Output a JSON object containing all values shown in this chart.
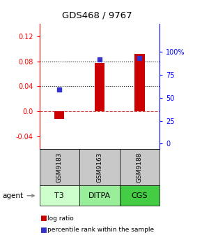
{
  "title": "GDS468 / 9767",
  "categories": [
    "T3",
    "DITPA",
    "CGS"
  ],
  "gsm_labels": [
    "GSM9183",
    "GSM9163",
    "GSM9188"
  ],
  "log_ratios": [
    -0.012,
    0.077,
    0.092
  ],
  "percentile_ranks": [
    0.035,
    0.083,
    0.085
  ],
  "ylim_left": [
    -0.06,
    0.14
  ],
  "ylim_right": [
    -6.25,
    131.25
  ],
  "yticks_left": [
    -0.04,
    0.0,
    0.04,
    0.08,
    0.12
  ],
  "yticks_right": [
    0,
    25,
    50,
    75,
    100
  ],
  "ytick_labels_right": [
    "0",
    "25",
    "50",
    "75",
    "100%"
  ],
  "dotted_lines": [
    0.04,
    0.08
  ],
  "dashed_line": 0.0,
  "bar_color": "#cc0000",
  "dot_color": "#3333cc",
  "agent_colors": [
    "#ccffcc",
    "#99ee99",
    "#44cc44"
  ],
  "gsm_bg_color": "#c8c8c8",
  "bar_width": 0.25
}
